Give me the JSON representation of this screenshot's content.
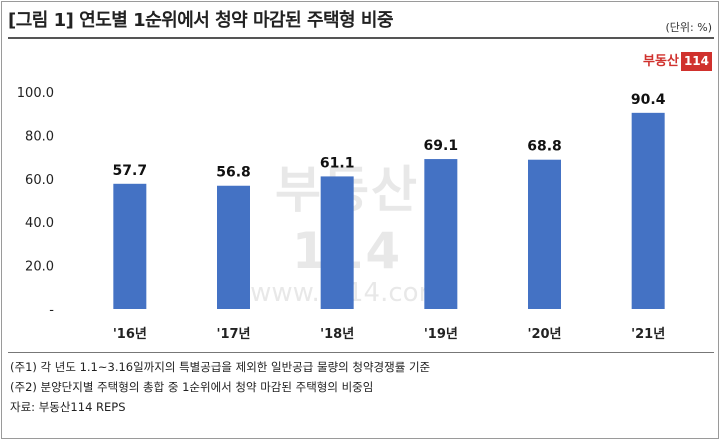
{
  "header": {
    "title": "[그림 1] 연도별 1순위에서 청약 마감된 주택형 비중",
    "unit": "(단위: %)"
  },
  "logo": {
    "text": "부동산",
    "number": "114"
  },
  "watermark": {
    "logo": "부동산114",
    "url": "www.r114.com"
  },
  "chart_data": {
    "type": "bar",
    "title": "[그림 1] 연도별 1순위에서 청약 마감된 주택형 비중",
    "categories": [
      "'16년",
      "'17년",
      "'18년",
      "'19년",
      "'20년",
      "'21년"
    ],
    "values": [
      57.7,
      56.8,
      61.1,
      69.1,
      68.8,
      90.4
    ],
    "value_labels": [
      "57.7",
      "56.8",
      "61.1",
      "69.1",
      "68.8",
      "90.4"
    ],
    "y_ticks": [
      "-",
      "20.0",
      "40.0",
      "60.0",
      "80.0",
      "100.0"
    ],
    "y_tick_values": [
      0,
      20,
      40,
      60,
      80,
      100
    ],
    "ylim": [
      0,
      100
    ],
    "xlabel": "",
    "ylabel": "",
    "bar_color": "#4472c4",
    "grid": false,
    "legend": "none"
  },
  "footer": {
    "notes": [
      "(주1) 각 년도 1.1~3.16일까지의 특별공급을 제외한 일반공급 물량의 청약경쟁률 기준",
      "(주2) 분양단지별 주택형의 총합 중 1순위에서 청약 마감된 주택형의 비중임",
      "자료: 부동산114 REPS"
    ]
  }
}
